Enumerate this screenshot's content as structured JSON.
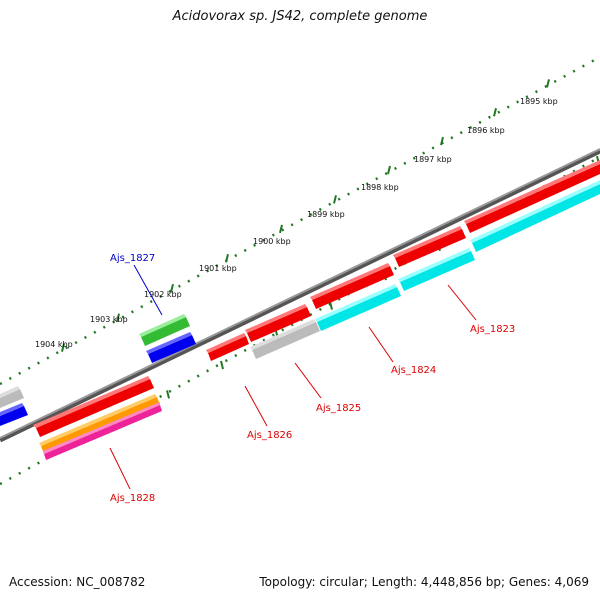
{
  "title": "Acidovorax sp. JS42, complete genome",
  "footer": {
    "accession": "Accession: NC_008782",
    "summary": "Topology: circular; Length: 4,448,856 bp; Genes: 4,069"
  },
  "kbp_ticks": [
    "1895 kbp",
    "1896 kbp",
    "1897 kbp",
    "1898 kbp",
    "1899 kbp",
    "1900 kbp",
    "1901 kbp",
    "1902 kbp",
    "1903 kbp",
    "1904 kbp"
  ],
  "genes": [
    {
      "name": "Ajs_1823",
      "color": "#dd0000"
    },
    {
      "name": "Ajs_1824",
      "color": "#dd0000"
    },
    {
      "name": "Ajs_1825",
      "color": "#dd0000"
    },
    {
      "name": "Ajs_1826",
      "color": "#dd0000"
    },
    {
      "name": "Ajs_1827",
      "color": "#0000cc"
    },
    {
      "name": "Ajs_1828",
      "color": "#dd0000"
    }
  ],
  "colors": {
    "backbone": "#777777",
    "ticks": "#227722",
    "red": "#ee0000",
    "cyan": "#00e5e5",
    "gray": "#bbbbbb",
    "green": "#33bb33",
    "blue": "#0000ee",
    "orange": "#ff9900",
    "magenta": "#ee2299"
  }
}
